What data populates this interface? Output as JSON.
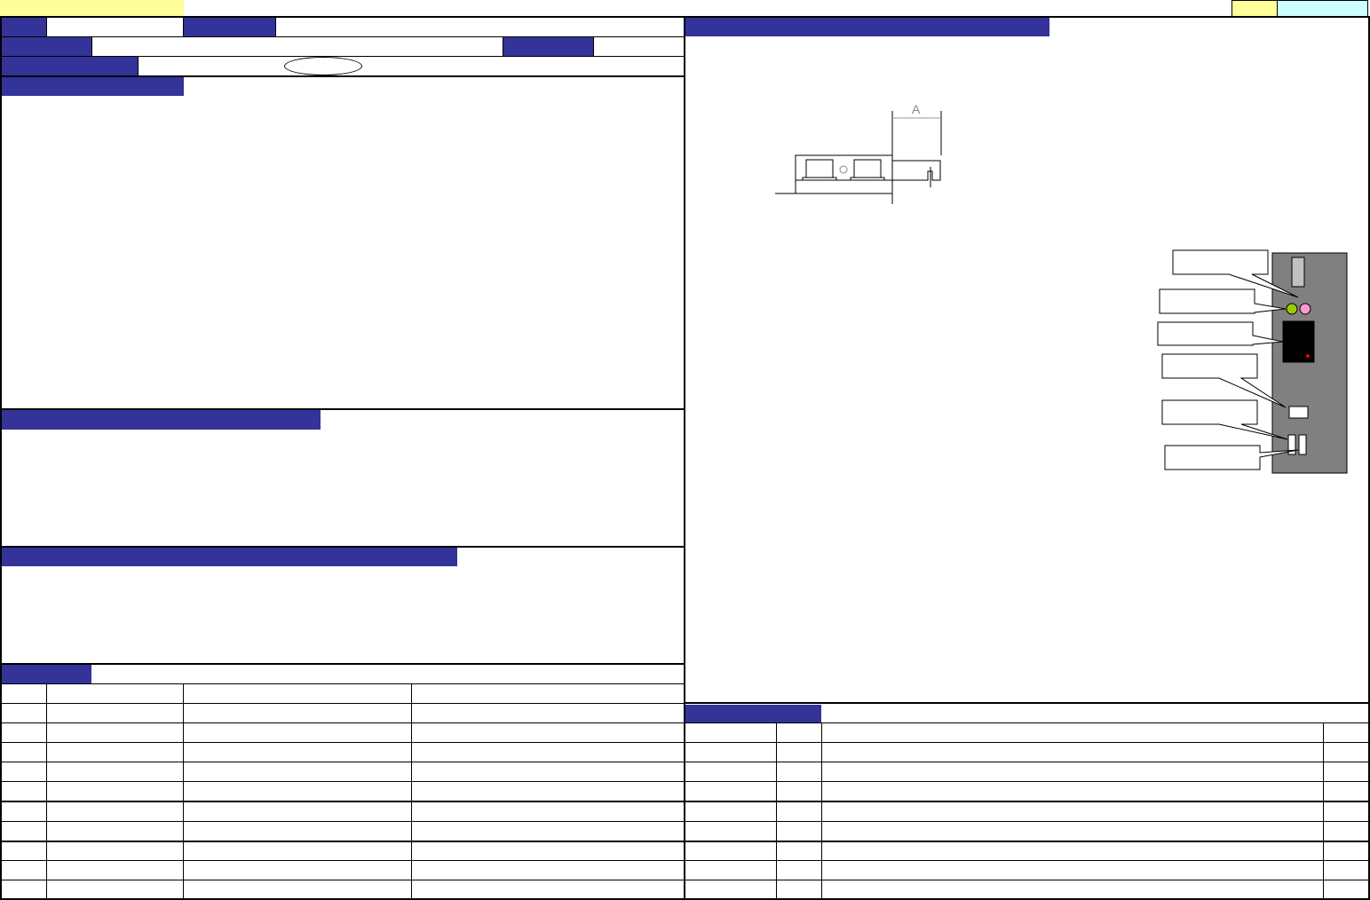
{
  "colors": {
    "header": "#333399",
    "highlight_yellow": "#ffff99",
    "highlight_cyan": "#ccffff",
    "panel_gray": "#808080",
    "led_green": "#99cc00",
    "led_pink": "#ff99cc",
    "indicator_red": "#ff0000"
  },
  "drawing": {
    "dimension_label": "A"
  },
  "left_table": {
    "rows": 10
  },
  "right_table": {
    "rows": 9
  }
}
